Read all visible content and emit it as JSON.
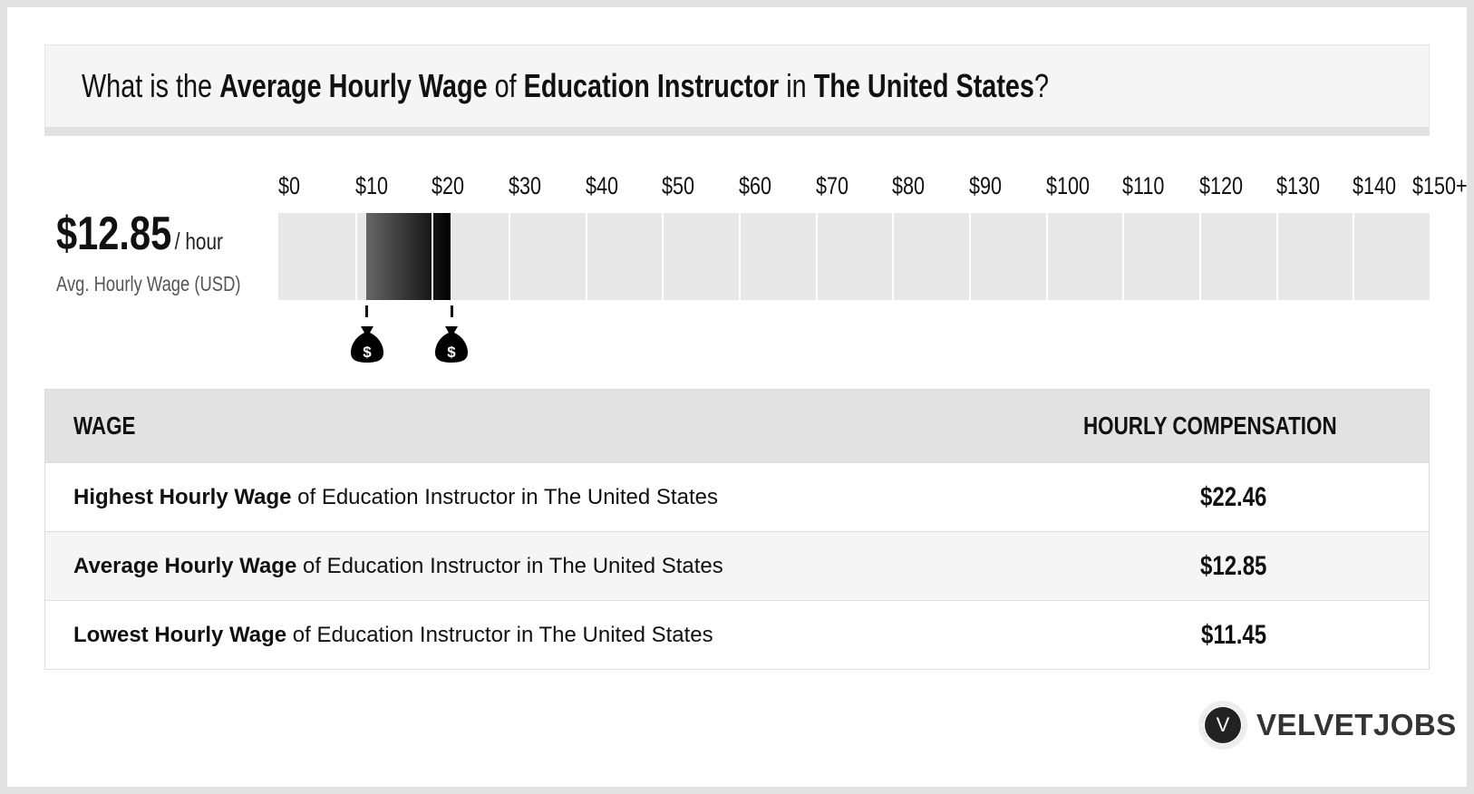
{
  "header": {
    "q1": "What is the ",
    "b1": "Average Hourly Wage",
    "q2": " of ",
    "b2": "Education Instructor",
    "q3": " in ",
    "b3": "The United States",
    "q4": "?"
  },
  "summary": {
    "value": "$12.85",
    "unit": "/ hour",
    "label": "Avg. Hourly Wage (USD)"
  },
  "chart_data": {
    "type": "range-bar",
    "categories": [
      "$0",
      "$10",
      "$20",
      "$30",
      "$40",
      "$50",
      "$60",
      "$70",
      "$80",
      "$90",
      "$100",
      "$110",
      "$120",
      "$130",
      "$140",
      "$150+"
    ],
    "xlim": [
      0,
      150
    ],
    "range": {
      "low": 11.45,
      "average": 12.85,
      "high": 22.46
    }
  },
  "table": {
    "headers": [
      "WAGE",
      "HOURLY COMPENSATION"
    ],
    "rows": [
      {
        "bold": "Highest Hourly Wage",
        "rest": " of Education Instructor in The United States",
        "value": "$22.46"
      },
      {
        "bold": "Average Hourly Wage",
        "rest": " of Education Instructor in The United States",
        "value": "$12.85"
      },
      {
        "bold": "Lowest Hourly Wage",
        "rest": " of Education Instructor in The United States",
        "value": "$11.45"
      }
    ]
  },
  "logo": {
    "mark": "V",
    "name": "VELVETJOBS"
  },
  "icons": {
    "marker": "money-bag-icon"
  }
}
